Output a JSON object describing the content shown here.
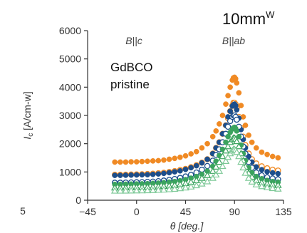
{
  "chart_data": {
    "type": "scatter",
    "xlabel": "θ [deg.]",
    "ylabel": "I_c [A/cm-w]",
    "ylabel_main": "I",
    "ylabel_sub": "c",
    "ylabel_unit": " [A/cm-w]",
    "xlim": [
      -45,
      135
    ],
    "ylim": [
      0,
      6000
    ],
    "x_ticks": [
      -45,
      0,
      45,
      90,
      135
    ],
    "x_tick_labels": [
      "−45",
      "0",
      "45",
      "90",
      "135"
    ],
    "y_ticks": [
      0,
      1000,
      2000,
      3000,
      4000,
      5000,
      6000
    ],
    "y_tick_labels": [
      "0",
      "1000",
      "2000",
      "3000",
      "4000",
      "5000",
      "6000"
    ],
    "stray_label": "5",
    "annotations": {
      "b_parallel_c": "B||c",
      "b_parallel_ab": "B||ab",
      "width_main": "10mm",
      "width_sup": "W",
      "sample_line1": "GdBCO",
      "sample_line2": "pristine"
    },
    "colors": {
      "orange": "#f08a24",
      "navy": "#1c4e8c",
      "green": "#3aa35e",
      "lightgreen": "#7cc896",
      "axis": "#333333"
    },
    "x": [
      -20,
      -15,
      -10,
      -5,
      0,
      5,
      10,
      15,
      20,
      25,
      30,
      35,
      40,
      45,
      50,
      55,
      60,
      65,
      70,
      73,
      76,
      79,
      82,
      84,
      86,
      88,
      89,
      90,
      91,
      92,
      94,
      96,
      98,
      100,
      103,
      106,
      110,
      115,
      120,
      125,
      130
    ],
    "series": [
      {
        "marker": "filled-circle",
        "color": "#f08a24",
        "values": [
          1350,
          1350,
          1350,
          1360,
          1360,
          1370,
          1380,
          1390,
          1400,
          1420,
          1450,
          1480,
          1520,
          1570,
          1640,
          1720,
          1850,
          2000,
          2250,
          2450,
          2700,
          3000,
          3400,
          3700,
          4000,
          4250,
          4330,
          4350,
          4300,
          4150,
          3800,
          3350,
          2950,
          2650,
          2300,
          2050,
          1850,
          1700,
          1620,
          1550,
          1500
        ]
      },
      {
        "marker": "open-circle",
        "color": "#f08a24",
        "values": [
          900,
          900,
          905,
          910,
          915,
          920,
          930,
          940,
          955,
          975,
          1000,
          1030,
          1070,
          1110,
          1170,
          1240,
          1330,
          1450,
          1650,
          1850,
          2050,
          2350,
          2650,
          2900,
          3150,
          3350,
          3450,
          3450,
          3400,
          3250,
          2950,
          2550,
          2250,
          1950,
          1650,
          1450,
          1300,
          1200,
          1130,
          1080,
          1050
        ]
      },
      {
        "marker": "filled-circle",
        "color": "#1c4e8c",
        "values": [
          880,
          880,
          885,
          890,
          895,
          900,
          905,
          915,
          930,
          950,
          975,
          1005,
          1040,
          1090,
          1150,
          1220,
          1320,
          1450,
          1650,
          1850,
          2050,
          2350,
          2650,
          2950,
          3150,
          3330,
          3380,
          3400,
          3350,
          3200,
          2900,
          2500,
          2150,
          1850,
          1550,
          1350,
          1180,
          1080,
          1010,
          970,
          940
        ]
      },
      {
        "marker": "open-circle",
        "color": "#1c4e8c",
        "values": [
          620,
          620,
          625,
          630,
          635,
          640,
          650,
          660,
          675,
          695,
          720,
          750,
          790,
          840,
          900,
          980,
          1080,
          1210,
          1400,
          1600,
          1800,
          2050,
          2350,
          2600,
          2800,
          2950,
          3000,
          3000,
          2950,
          2850,
          2600,
          2250,
          1900,
          1650,
          1350,
          1150,
          980,
          880,
          810,
          770,
          740
        ]
      },
      {
        "marker": "filled-circle",
        "color": "#3aa35e",
        "values": [
          560,
          560,
          565,
          570,
          575,
          580,
          585,
          595,
          605,
          620,
          640,
          660,
          690,
          730,
          780,
          840,
          920,
          1030,
          1200,
          1380,
          1580,
          1800,
          2050,
          2250,
          2400,
          2520,
          2560,
          2580,
          2540,
          2450,
          2250,
          1950,
          1650,
          1400,
          1150,
          980,
          840,
          760,
          700,
          660,
          640
        ]
      },
      {
        "marker": "open-triangle",
        "color": "#3aa35e",
        "values": [
          440,
          440,
          445,
          450,
          455,
          460,
          465,
          470,
          480,
          495,
          510,
          530,
          560,
          595,
          640,
          700,
          780,
          880,
          1030,
          1180,
          1350,
          1550,
          1750,
          1900,
          2050,
          2150,
          2200,
          2200,
          2150,
          2080,
          1900,
          1650,
          1400,
          1180,
          960,
          820,
          700,
          620,
          580,
          550,
          530
        ]
      },
      {
        "marker": "open-triangle",
        "color": "#7cc896",
        "values": [
          330,
          330,
          332,
          335,
          338,
          340,
          345,
          350,
          358,
          368,
          380,
          395,
          415,
          440,
          475,
          520,
          580,
          660,
          780,
          900,
          1030,
          1200,
          1380,
          1520,
          1650,
          1750,
          1800,
          1800,
          1760,
          1700,
          1550,
          1350,
          1150,
          960,
          780,
          650,
          550,
          490,
          450,
          420,
          400
        ]
      }
    ]
  }
}
